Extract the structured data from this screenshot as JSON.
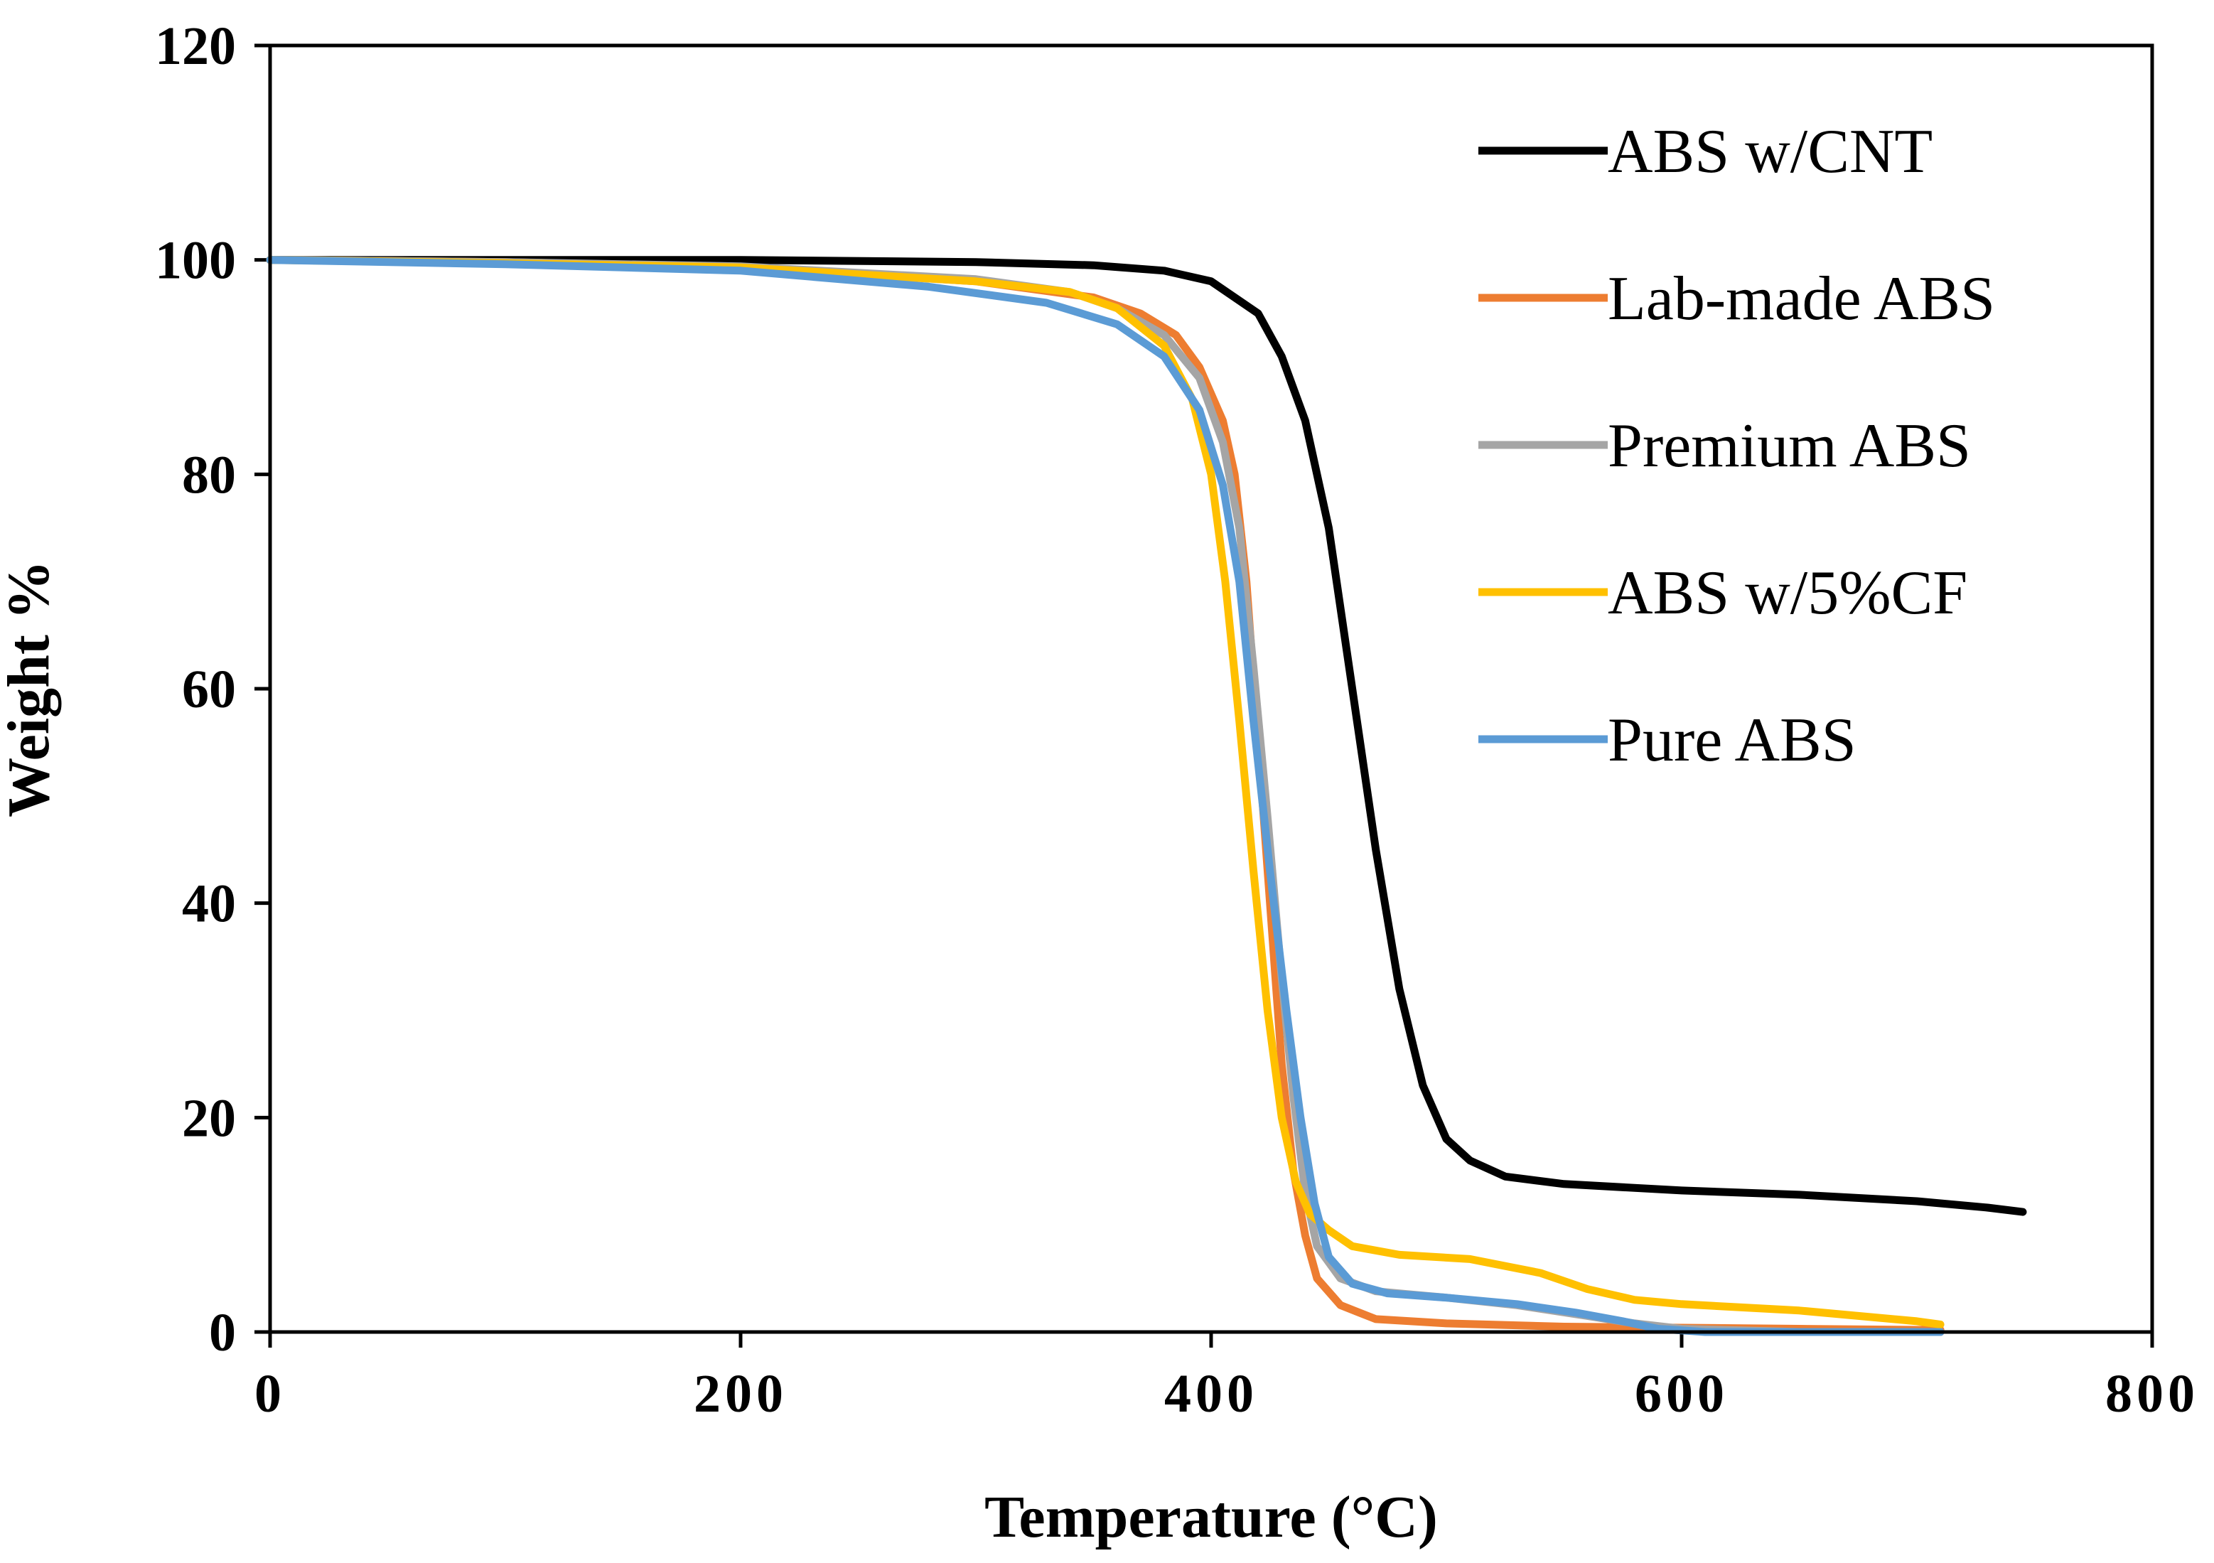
{
  "chart_data": {
    "type": "line",
    "title": "",
    "xlabel": "Temperature (°C)",
    "ylabel": "Weight %",
    "xlim": [
      0,
      800
    ],
    "ylim": [
      0,
      120
    ],
    "xticks": [
      0,
      200,
      400,
      600,
      800
    ],
    "yticks": [
      0,
      20,
      40,
      60,
      80,
      100,
      120
    ],
    "xtick_labels": [
      "0",
      "200",
      "400",
      "600",
      "800"
    ],
    "ytick_labels": [
      "0",
      "20",
      "40",
      "60",
      "80",
      "100",
      "120"
    ],
    "grid": false,
    "legend_position": "top-right",
    "series": [
      {
        "name": "ABS w/CNT",
        "color": "#000000",
        "points": [
          [
            0,
            100
          ],
          [
            100,
            100
          ],
          [
            200,
            100
          ],
          [
            300,
            99.8
          ],
          [
            350,
            99.5
          ],
          [
            380,
            99
          ],
          [
            400,
            98
          ],
          [
            420,
            95
          ],
          [
            430,
            91
          ],
          [
            440,
            85
          ],
          [
            450,
            75
          ],
          [
            460,
            60
          ],
          [
            470,
            45
          ],
          [
            480,
            32
          ],
          [
            490,
            23
          ],
          [
            500,
            18
          ],
          [
            510,
            16
          ],
          [
            525,
            14.5
          ],
          [
            550,
            13.8
          ],
          [
            600,
            13.2
          ],
          [
            650,
            12.8
          ],
          [
            700,
            12.2
          ],
          [
            730,
            11.6
          ],
          [
            745,
            11.2
          ]
        ]
      },
      {
        "name": "Lab-made ABS",
        "color": "#ED7D31",
        "points": [
          [
            0,
            100
          ],
          [
            100,
            99.8
          ],
          [
            200,
            99.3
          ],
          [
            300,
            98
          ],
          [
            350,
            96.5
          ],
          [
            370,
            95
          ],
          [
            385,
            93
          ],
          [
            395,
            90
          ],
          [
            405,
            85
          ],
          [
            410,
            80
          ],
          [
            415,
            70
          ],
          [
            420,
            55
          ],
          [
            425,
            40
          ],
          [
            430,
            25
          ],
          [
            435,
            15
          ],
          [
            440,
            9
          ],
          [
            445,
            5
          ],
          [
            455,
            2.5
          ],
          [
            470,
            1.2
          ],
          [
            500,
            0.8
          ],
          [
            550,
            0.5
          ],
          [
            600,
            0.4
          ],
          [
            650,
            0.3
          ],
          [
            700,
            0.2
          ],
          [
            710,
            0.2
          ]
        ]
      },
      {
        "name": "Premium ABS",
        "color": "#A5A5A5",
        "points": [
          [
            0,
            100
          ],
          [
            100,
            99.8
          ],
          [
            200,
            99.4
          ],
          [
            300,
            98.2
          ],
          [
            340,
            97
          ],
          [
            360,
            95.5
          ],
          [
            380,
            93
          ],
          [
            395,
            89
          ],
          [
            405,
            83
          ],
          [
            412,
            75
          ],
          [
            418,
            62
          ],
          [
            424,
            48
          ],
          [
            430,
            33
          ],
          [
            435,
            22
          ],
          [
            440,
            13
          ],
          [
            445,
            8
          ],
          [
            455,
            5
          ],
          [
            470,
            3.8
          ],
          [
            500,
            3.2
          ],
          [
            530,
            2.5
          ],
          [
            560,
            1.5
          ],
          [
            580,
            0.8
          ],
          [
            600,
            0.3
          ],
          [
            650,
            0
          ],
          [
            710,
            0
          ]
        ]
      },
      {
        "name": "ABS w/5%CF",
        "color": "#FFC000",
        "points": [
          [
            0,
            100
          ],
          [
            100,
            99.7
          ],
          [
            200,
            99.3
          ],
          [
            300,
            98
          ],
          [
            340,
            97
          ],
          [
            360,
            95.5
          ],
          [
            380,
            92
          ],
          [
            392,
            87
          ],
          [
            400,
            80
          ],
          [
            406,
            70
          ],
          [
            412,
            57
          ],
          [
            418,
            43
          ],
          [
            424,
            30
          ],
          [
            430,
            20
          ],
          [
            436,
            14
          ],
          [
            442,
            11
          ],
          [
            450,
            9.5
          ],
          [
            460,
            8
          ],
          [
            480,
            7.2
          ],
          [
            510,
            6.8
          ],
          [
            540,
            5.5
          ],
          [
            560,
            4
          ],
          [
            580,
            3
          ],
          [
            600,
            2.6
          ],
          [
            650,
            2
          ],
          [
            700,
            1
          ],
          [
            710,
            0.7
          ]
        ]
      },
      {
        "name": "Pure ABS",
        "color": "#5B9BD5",
        "points": [
          [
            0,
            100
          ],
          [
            100,
            99.6
          ],
          [
            200,
            99
          ],
          [
            280,
            97.5
          ],
          [
            330,
            96
          ],
          [
            360,
            94
          ],
          [
            380,
            91
          ],
          [
            395,
            86
          ],
          [
            405,
            79
          ],
          [
            412,
            70
          ],
          [
            418,
            57
          ],
          [
            425,
            43
          ],
          [
            432,
            30
          ],
          [
            438,
            20
          ],
          [
            444,
            12
          ],
          [
            450,
            7
          ],
          [
            460,
            4.5
          ],
          [
            475,
            3.6
          ],
          [
            500,
            3.2
          ],
          [
            530,
            2.6
          ],
          [
            555,
            1.8
          ],
          [
            575,
            1
          ],
          [
            590,
            0.3
          ],
          [
            610,
            0
          ],
          [
            650,
            0
          ],
          [
            710,
            0
          ]
        ]
      }
    ]
  }
}
